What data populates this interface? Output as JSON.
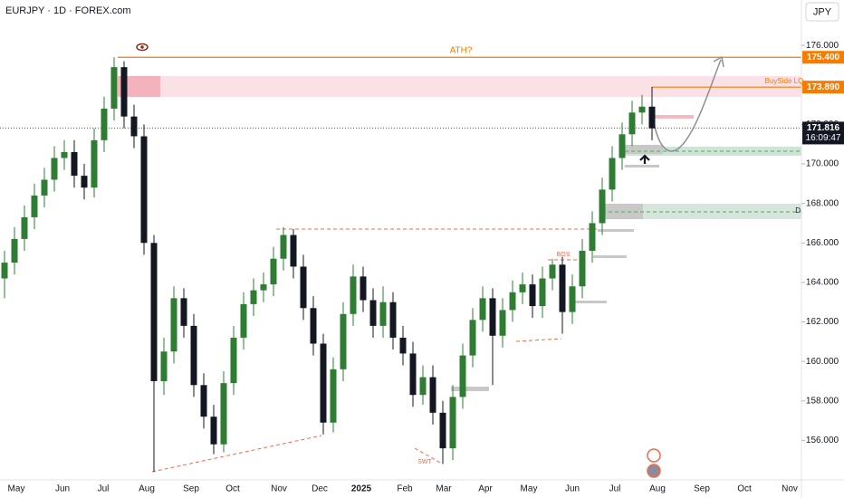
{
  "chart_data": {
    "type": "candlestick",
    "title": "EURJPY · 1D · FOREX.com",
    "currency": "JPY",
    "open": [
      164.2,
      165.0,
      166.2,
      167.3,
      168.4,
      169.2,
      170.3,
      170.6,
      169.4,
      168.8,
      171.2,
      172.8,
      174.9,
      172.4,
      171.4,
      166.0,
      159.0,
      160.5,
      163.2,
      161.8,
      158.8,
      157.2,
      155.8,
      158.9,
      161.2,
      162.9,
      163.6,
      163.9,
      165.2,
      166.4,
      164.8,
      162.7,
      160.9,
      156.9,
      159.6,
      162.4,
      164.3,
      163.1,
      161.8,
      163.0,
      161.2,
      160.4,
      158.3,
      159.2,
      157.4,
      155.6,
      158.2,
      160.3,
      162.1,
      163.2,
      161.3,
      162.6,
      163.5,
      163.9,
      162.8,
      164.2,
      164.9,
      162.5,
      163.8,
      165.6,
      167.0,
      168.7,
      170.3,
      171.5,
      172.6,
      172.9
    ],
    "high": [
      165.6,
      166.8,
      167.9,
      169.0,
      169.8,
      170.9,
      171.2,
      171.2,
      170.0,
      171.8,
      173.4,
      175.4,
      175.2,
      173.0,
      172.0,
      166.4,
      161.2,
      163.8,
      163.7,
      162.4,
      159.4,
      157.8,
      159.5,
      161.8,
      163.5,
      164.2,
      164.5,
      165.8,
      166.8,
      166.7,
      165.4,
      163.3,
      161.4,
      160.2,
      163.0,
      164.9,
      164.8,
      163.7,
      163.8,
      163.5,
      161.8,
      161.0,
      159.8,
      159.8,
      158.0,
      158.8,
      160.9,
      162.7,
      163.8,
      163.7,
      163.2,
      164.1,
      164.5,
      164.4,
      164.8,
      165.2,
      165.3,
      164.4,
      166.2,
      167.6,
      169.3,
      170.9,
      172.1,
      173.2,
      173.5,
      173.9
    ],
    "low": [
      163.2,
      164.4,
      165.6,
      166.7,
      167.8,
      168.6,
      169.7,
      168.8,
      168.2,
      168.3,
      170.6,
      172.2,
      171.8,
      170.8,
      165.4,
      154.4,
      158.3,
      159.9,
      161.2,
      158.2,
      156.6,
      155.3,
      155.4,
      158.3,
      160.6,
      162.3,
      163.0,
      163.3,
      164.6,
      164.2,
      162.1,
      160.3,
      156.3,
      156.4,
      159.0,
      161.8,
      162.5,
      161.2,
      161.2,
      160.6,
      159.8,
      157.7,
      157.8,
      156.8,
      154.8,
      155.0,
      157.6,
      159.7,
      161.5,
      158.8,
      160.7,
      162.0,
      162.9,
      162.2,
      162.2,
      163.6,
      161.4,
      161.9,
      163.2,
      165.0,
      166.4,
      168.1,
      169.7,
      170.9,
      172.0,
      171.2
    ],
    "close": [
      165.0,
      166.2,
      167.3,
      168.4,
      169.2,
      170.3,
      170.6,
      169.4,
      168.8,
      171.2,
      172.8,
      174.9,
      172.4,
      171.4,
      166.0,
      159.0,
      160.5,
      163.2,
      161.8,
      158.8,
      157.2,
      155.8,
      158.9,
      161.2,
      162.9,
      163.6,
      163.9,
      165.2,
      166.4,
      164.8,
      162.7,
      160.9,
      156.9,
      159.6,
      162.4,
      164.3,
      163.1,
      161.8,
      163.0,
      161.2,
      160.4,
      158.3,
      159.2,
      157.4,
      155.6,
      158.2,
      160.3,
      162.1,
      163.2,
      161.3,
      162.6,
      163.5,
      163.9,
      162.8,
      164.2,
      164.9,
      162.5,
      163.8,
      165.6,
      167.0,
      168.7,
      170.3,
      171.5,
      172.6,
      172.9,
      171.8
    ],
    "up_color": "#2e7d32",
    "down_color": "#131722",
    "ylim": [
      154.0,
      178.3
    ],
    "yticks": [
      {
        "value": 156,
        "label": "156.000"
      },
      {
        "value": 158,
        "label": "158.000"
      },
      {
        "value": 160,
        "label": "160.000"
      },
      {
        "value": 162,
        "label": "162.000"
      },
      {
        "value": 164,
        "label": "164.000"
      },
      {
        "value": 166,
        "label": "166.000"
      },
      {
        "value": 168,
        "label": "168.000"
      },
      {
        "value": 170,
        "label": "170.000"
      },
      {
        "value": 172,
        "label": "172.000"
      },
      {
        "value": 174,
        "label": "174.000"
      },
      {
        "value": 176,
        "label": "176.000"
      }
    ],
    "grid": false,
    "xtick_labels": [
      "May",
      "Jun",
      "Jul",
      "Aug",
      "Sep",
      "Oct",
      "Nov",
      "Dec",
      "2025",
      "Feb",
      "Mar",
      "Apr",
      "May",
      "Jun",
      "Jul",
      "Aug",
      "Sep",
      "Oct",
      "Nov"
    ],
    "levels": [
      {
        "value": 175.4,
        "label": "175.400",
        "color": "#f57c00"
      },
      {
        "value": 173.89,
        "label": "173.890",
        "color": "#f57c00"
      },
      {
        "value": 171.816,
        "label": "171.816",
        "color": "#131722"
      }
    ],
    "countdown": "16:09:47",
    "annotations": [
      "ATH?",
      "BuySide LQ",
      "BOS",
      "SWT",
      "D"
    ]
  }
}
